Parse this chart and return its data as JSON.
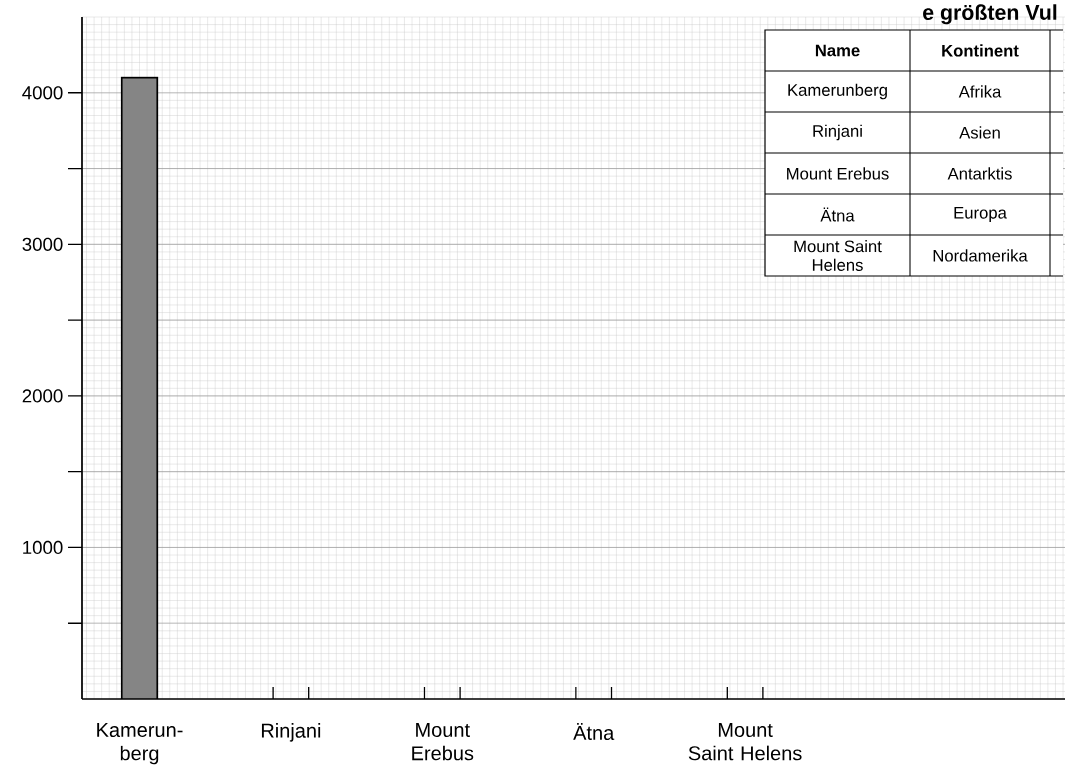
{
  "chart_data": {
    "type": "bar",
    "categories": [
      "Kamerun-berg",
      "Rinjani",
      "Mount Erebus",
      "Ätna",
      "Mount Saint Helens"
    ],
    "values": [
      4100,
      null,
      null,
      null,
      null
    ],
    "color": "#858585",
    "ylim": [
      0,
      4500
    ],
    "yticks": [
      {
        "value": 500,
        "label": null
      },
      1000,
      {
        "value": 1500,
        "label": null
      },
      2000,
      {
        "value": 2500,
        "label": null
      },
      3000,
      {
        "value": 3500,
        "label": null
      },
      4000
    ],
    "grid": true,
    "annotations": [
      "e größten Vul",
      "Name",
      "Kontinent",
      "Kamerunberg",
      "Afrika",
      "Rinjani",
      "Asien",
      "Mount Erebus",
      "Antarktis",
      "Ätna",
      "Europa",
      "Mount Saint Helens",
      "Nordamerika"
    ]
  }
}
